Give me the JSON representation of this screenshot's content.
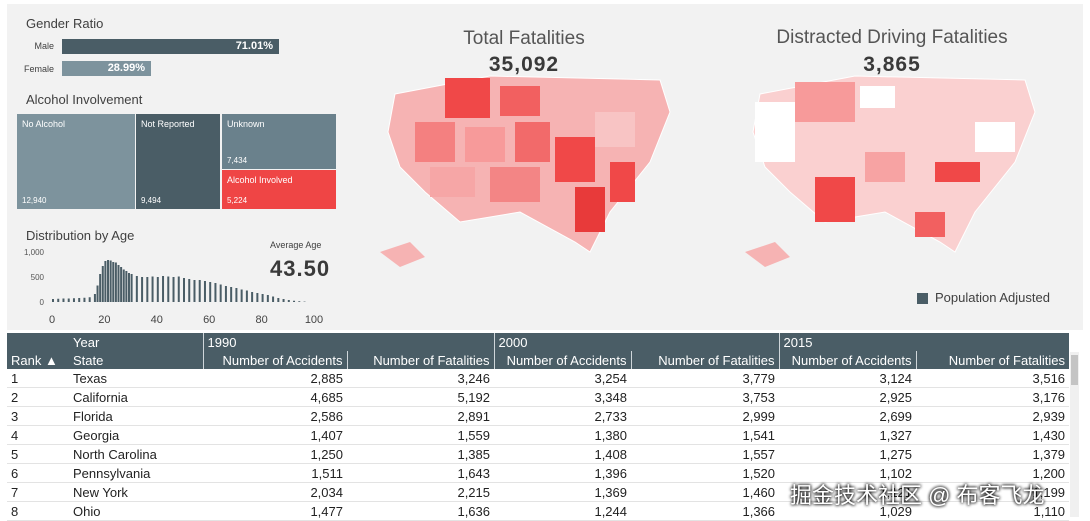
{
  "gender": {
    "title": "Gender Ratio",
    "rows": [
      {
        "label": "Male",
        "value": "71.01%",
        "pct": 71.01,
        "color": "#4a5d66"
      },
      {
        "label": "Female",
        "value": "28.99%",
        "pct": 28.99,
        "color": "#7d939d"
      }
    ]
  },
  "alcohol": {
    "title": "Alcohol Involvement",
    "tiles": [
      {
        "label": "No Alcohol",
        "value": "12,940"
      },
      {
        "label": "Not Reported",
        "value": "9,494"
      },
      {
        "label": "Unknown",
        "value": "7,434"
      },
      {
        "label": "Alcohol Involved",
        "value": "5,224"
      }
    ]
  },
  "age": {
    "title": "Distribution by Age",
    "avg_label": "Average Age",
    "avg_value": "43.50",
    "y_ticks": [
      "1,000",
      "500",
      "0"
    ],
    "x_ticks": [
      "0",
      "20",
      "40",
      "60",
      "80",
      "100"
    ]
  },
  "chart_data": {
    "type": "bar",
    "title": "Distribution by Age",
    "xlabel": "",
    "ylabel": "",
    "ylim": [
      0,
      1000
    ],
    "xlim": [
      0,
      100
    ],
    "x": [
      0,
      2,
      4,
      6,
      8,
      10,
      12,
      14,
      16,
      17,
      18,
      19,
      20,
      21,
      22,
      23,
      24,
      25,
      26,
      27,
      28,
      29,
      30,
      32,
      34,
      36,
      38,
      40,
      42,
      44,
      46,
      48,
      50,
      52,
      54,
      56,
      58,
      60,
      62,
      64,
      66,
      68,
      70,
      72,
      74,
      76,
      78,
      80,
      82,
      84,
      86,
      88,
      90,
      92,
      94,
      96
    ],
    "values": [
      60,
      65,
      70,
      70,
      75,
      80,
      85,
      95,
      160,
      330,
      560,
      720,
      820,
      840,
      830,
      800,
      790,
      740,
      700,
      650,
      620,
      580,
      560,
      520,
      500,
      500,
      510,
      500,
      520,
      510,
      500,
      510,
      480,
      460,
      440,
      440,
      420,
      400,
      380,
      350,
      320,
      300,
      280,
      250,
      230,
      200,
      180,
      160,
      140,
      110,
      80,
      60,
      40,
      25,
      15,
      8
    ]
  },
  "maps": {
    "total": {
      "title": "Total Fatalities",
      "value": "35,092"
    },
    "distracted": {
      "title": "Distracted Driving Fatalities",
      "value": "3,865"
    },
    "legend": "Population Adjusted"
  },
  "table": {
    "group_headers": [
      "Year",
      "1990",
      "2000",
      "2015"
    ],
    "rank_header": "Rank",
    "state_header": "State",
    "col_accidents": "Number of Accidents",
    "col_fatalities": "Number of Fatalities",
    "rows": [
      {
        "rank": "1",
        "state": "Texas",
        "v": [
          "2,885",
          "3,246",
          "3,254",
          "3,779",
          "3,124",
          "3,516"
        ]
      },
      {
        "rank": "2",
        "state": "California",
        "v": [
          "4,685",
          "5,192",
          "3,348",
          "3,753",
          "2,925",
          "3,176"
        ]
      },
      {
        "rank": "3",
        "state": "Florida",
        "v": [
          "2,586",
          "2,891",
          "2,733",
          "2,999",
          "2,699",
          "2,939"
        ]
      },
      {
        "rank": "4",
        "state": "Georgia",
        "v": [
          "1,407",
          "1,559",
          "1,380",
          "1,541",
          "1,327",
          "1,430"
        ]
      },
      {
        "rank": "5",
        "state": "North Carolina",
        "v": [
          "1,250",
          "1,385",
          "1,408",
          "1,557",
          "1,275",
          "1,379"
        ]
      },
      {
        "rank": "6",
        "state": "Pennsylvania",
        "v": [
          "1,511",
          "1,643",
          "1,396",
          "1,520",
          "1,102",
          "1,200"
        ]
      },
      {
        "rank": "7",
        "state": "New York",
        "v": [
          "2,034",
          "2,215",
          "1,369",
          "1,460",
          "1,121",
          "1,199"
        ]
      },
      {
        "rank": "8",
        "state": "Ohio",
        "v": [
          "1,477",
          "1,636",
          "1,244",
          "1,366",
          "1,029",
          "1,110"
        ]
      }
    ]
  },
  "watermark": "掘金技术社区 @ 布客飞龙",
  "colors": {
    "slate": "#4a5d66",
    "red": "#f04848",
    "pink": "#f6b3b3"
  }
}
